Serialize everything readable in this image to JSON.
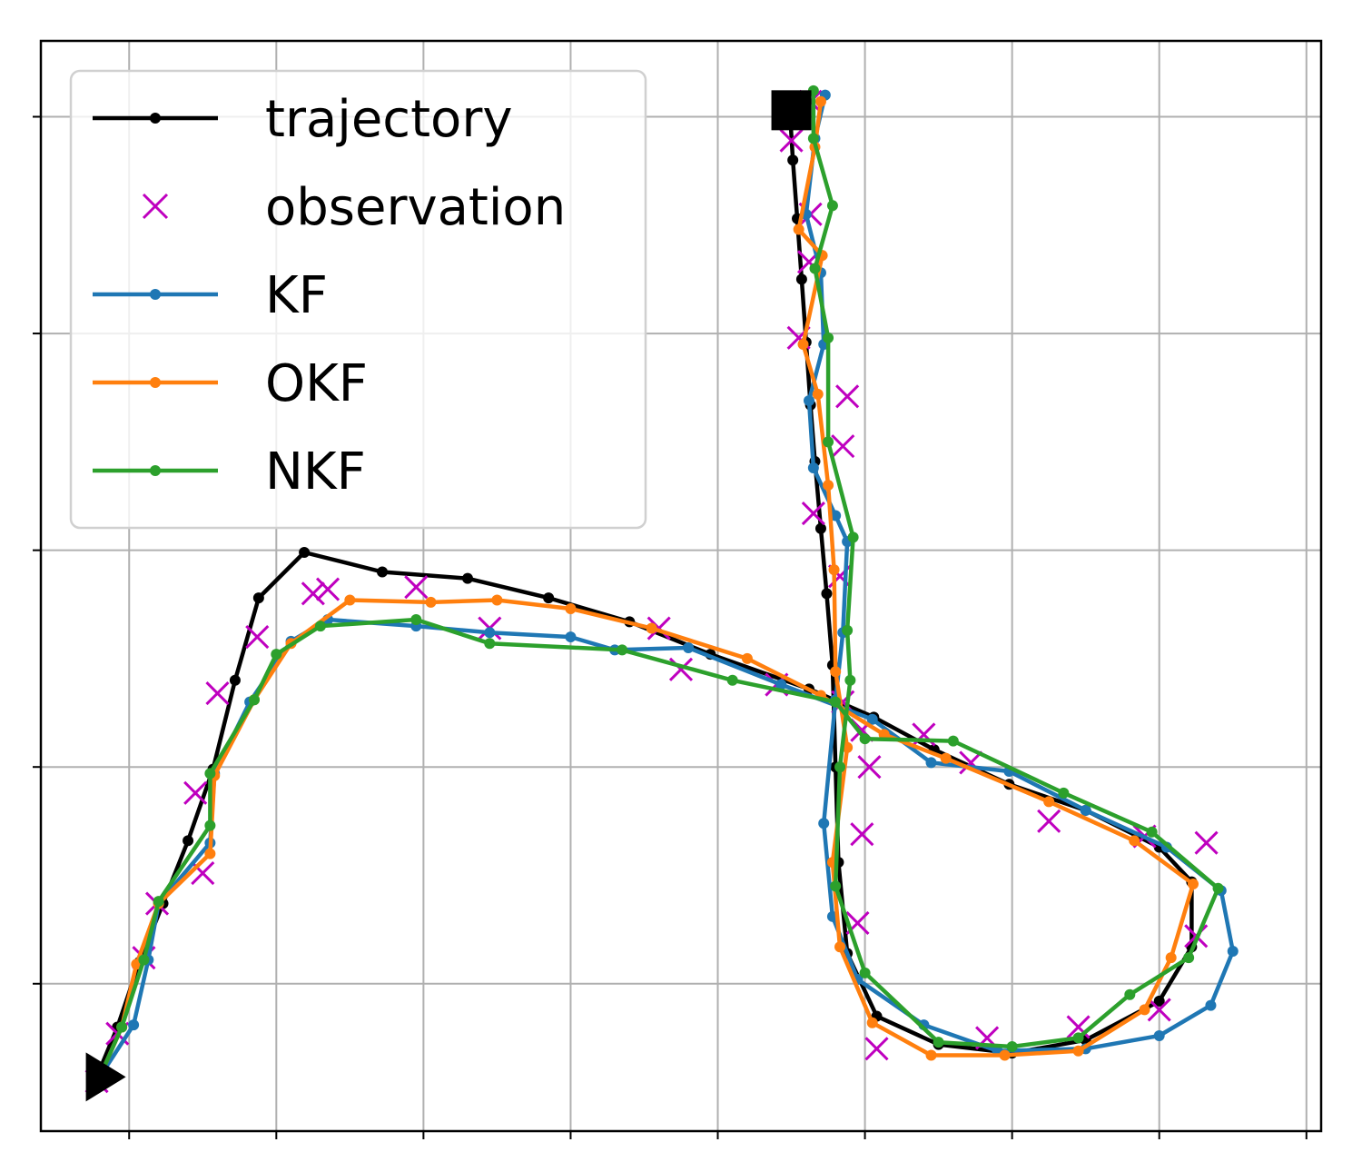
{
  "chart_data": {
    "type": "line",
    "title": "",
    "xlabel": "",
    "ylabel": "",
    "xlim": [
      -0.6,
      8.1
    ],
    "ylim": [
      -0.68,
      4.35
    ],
    "x_grid": [
      0,
      1,
      2,
      3,
      4,
      5,
      6,
      7,
      8
    ],
    "y_grid": [
      0,
      1,
      2,
      3,
      4
    ],
    "grid": true,
    "tick_labels_visible": false,
    "legend_position": "top-left",
    "colors": {
      "trajectory": "#000000",
      "observation": "#bf00bf",
      "KF": "#1f77b4",
      "OKF": "#ff7f0e",
      "NKF": "#2ca02c",
      "grid": "#b0b0b0"
    },
    "markers": {
      "start": {
        "shape": "triangle-right",
        "x": -0.22,
        "y": -0.43
      },
      "end": {
        "shape": "square",
        "x": 4.5,
        "y": 4.03
      }
    },
    "series": [
      {
        "name": "trajectory",
        "style": "line-dot",
        "color": "#000000",
        "points": [
          [
            -0.22,
            -0.43
          ],
          [
            -0.08,
            -0.2
          ],
          [
            0.07,
            0.1
          ],
          [
            0.23,
            0.37
          ],
          [
            0.4,
            0.66
          ],
          [
            0.57,
            0.99
          ],
          [
            0.72,
            1.4
          ],
          [
            0.88,
            1.78
          ],
          [
            1.19,
            1.99
          ],
          [
            1.72,
            1.9
          ],
          [
            2.3,
            1.87
          ],
          [
            2.85,
            1.78
          ],
          [
            3.4,
            1.67
          ],
          [
            3.95,
            1.52
          ],
          [
            4.62,
            1.36
          ],
          [
            5.06,
            1.23
          ],
          [
            5.47,
            1.08
          ],
          [
            5.98,
            0.92
          ],
          [
            6.5,
            0.8
          ],
          [
            7.0,
            0.63
          ],
          [
            7.22,
            0.47
          ],
          [
            7.22,
            0.17
          ],
          [
            7.0,
            -0.08
          ],
          [
            6.5,
            -0.26
          ],
          [
            6.0,
            -0.32
          ],
          [
            5.5,
            -0.28
          ],
          [
            5.08,
            -0.15
          ],
          [
            4.88,
            0.14
          ],
          [
            4.82,
            0.56
          ],
          [
            4.8,
            1.0
          ],
          [
            4.78,
            1.47
          ],
          [
            4.74,
            1.8
          ],
          [
            4.7,
            2.1
          ],
          [
            4.66,
            2.41
          ],
          [
            4.63,
            2.67
          ],
          [
            4.6,
            2.96
          ],
          [
            4.57,
            3.25
          ],
          [
            4.54,
            3.53
          ],
          [
            4.51,
            3.8
          ],
          [
            4.49,
            4.03
          ]
        ]
      },
      {
        "name": "observation",
        "style": "x",
        "color": "#bf00bf",
        "points": [
          [
            -0.22,
            -0.45
          ],
          [
            -0.08,
            -0.23
          ],
          [
            0.1,
            0.12
          ],
          [
            0.19,
            0.37
          ],
          [
            0.5,
            0.51
          ],
          [
            0.45,
            0.88
          ],
          [
            0.6,
            1.34
          ],
          [
            0.87,
            1.6
          ],
          [
            1.25,
            1.8
          ],
          [
            1.35,
            1.82
          ],
          [
            1.95,
            1.83
          ],
          [
            2.45,
            1.64
          ],
          [
            3.6,
            1.64
          ],
          [
            3.75,
            1.45
          ],
          [
            4.4,
            1.38
          ],
          [
            4.98,
            1.17
          ],
          [
            5.4,
            1.15
          ],
          [
            5.03,
            1.0
          ],
          [
            5.72,
            1.02
          ],
          [
            6.25,
            0.75
          ],
          [
            6.9,
            0.68
          ],
          [
            7.32,
            0.65
          ],
          [
            7.25,
            0.22
          ],
          [
            7.0,
            -0.12
          ],
          [
            6.45,
            -0.2
          ],
          [
            5.83,
            -0.25
          ],
          [
            5.08,
            -0.3
          ],
          [
            4.95,
            0.28
          ],
          [
            4.98,
            0.69
          ],
          [
            4.85,
            1.3
          ],
          [
            4.83,
            1.88
          ],
          [
            4.65,
            2.17
          ],
          [
            4.85,
            2.48
          ],
          [
            4.88,
            2.71
          ],
          [
            4.55,
            2.98
          ],
          [
            4.62,
            3.33
          ],
          [
            4.63,
            3.55
          ],
          [
            4.5,
            3.89
          ],
          [
            4.63,
            4.07
          ]
        ]
      },
      {
        "name": "KF",
        "style": "line-dot",
        "color": "#1f77b4",
        "points": [
          [
            -0.2,
            -0.43
          ],
          [
            0.03,
            -0.19
          ],
          [
            0.13,
            0.11
          ],
          [
            0.2,
            0.37
          ],
          [
            0.55,
            0.65
          ],
          [
            0.58,
            0.97
          ],
          [
            0.82,
            1.3
          ],
          [
            1.1,
            1.58
          ],
          [
            1.35,
            1.68
          ],
          [
            1.95,
            1.65
          ],
          [
            2.45,
            1.62
          ],
          [
            3.0,
            1.6
          ],
          [
            3.3,
            1.54
          ],
          [
            3.8,
            1.55
          ],
          [
            4.43,
            1.38
          ],
          [
            5.05,
            1.22
          ],
          [
            5.45,
            1.02
          ],
          [
            5.98,
            0.98
          ],
          [
            6.5,
            0.8
          ],
          [
            7.05,
            0.63
          ],
          [
            7.42,
            0.43
          ],
          [
            7.5,
            0.15
          ],
          [
            7.35,
            -0.1
          ],
          [
            7.0,
            -0.24
          ],
          [
            6.5,
            -0.3
          ],
          [
            5.9,
            -0.31
          ],
          [
            5.4,
            -0.19
          ],
          [
            4.95,
            0.02
          ],
          [
            4.78,
            0.31
          ],
          [
            4.72,
            0.74
          ],
          [
            4.8,
            1.31
          ],
          [
            4.85,
            1.62
          ],
          [
            4.88,
            2.04
          ],
          [
            4.8,
            2.16
          ],
          [
            4.65,
            2.38
          ],
          [
            4.62,
            2.69
          ],
          [
            4.72,
            2.95
          ],
          [
            4.7,
            3.28
          ],
          [
            4.6,
            3.55
          ],
          [
            4.66,
            3.9
          ],
          [
            4.73,
            4.1
          ]
        ]
      },
      {
        "name": "OKF",
        "style": "line-dot",
        "color": "#ff7f0e",
        "points": [
          [
            -0.2,
            -0.43
          ],
          [
            -0.05,
            -0.2
          ],
          [
            0.05,
            0.09
          ],
          [
            0.2,
            0.37
          ],
          [
            0.55,
            0.6
          ],
          [
            0.58,
            0.96
          ],
          [
            0.85,
            1.31
          ],
          [
            1.1,
            1.57
          ],
          [
            1.5,
            1.77
          ],
          [
            2.05,
            1.76
          ],
          [
            2.5,
            1.77
          ],
          [
            3.0,
            1.73
          ],
          [
            3.55,
            1.64
          ],
          [
            4.2,
            1.5
          ],
          [
            4.7,
            1.33
          ],
          [
            5.13,
            1.15
          ],
          [
            5.55,
            1.04
          ],
          [
            6.25,
            0.84
          ],
          [
            6.83,
            0.66
          ],
          [
            7.23,
            0.46
          ],
          [
            7.08,
            0.12
          ],
          [
            6.9,
            -0.12
          ],
          [
            6.45,
            -0.31
          ],
          [
            5.95,
            -0.33
          ],
          [
            5.45,
            -0.33
          ],
          [
            5.05,
            -0.18
          ],
          [
            4.83,
            0.17
          ],
          [
            4.78,
            0.56
          ],
          [
            4.88,
            1.09
          ],
          [
            4.8,
            1.44
          ],
          [
            4.79,
            1.91
          ],
          [
            4.75,
            2.3
          ],
          [
            4.68,
            2.72
          ],
          [
            4.58,
            2.95
          ],
          [
            4.71,
            3.36
          ],
          [
            4.55,
            3.48
          ],
          [
            4.66,
            3.86
          ],
          [
            4.7,
            4.07
          ]
        ]
      },
      {
        "name": "NKF",
        "style": "line-dot",
        "color": "#2ca02c",
        "points": [
          [
            -0.2,
            -0.43
          ],
          [
            -0.05,
            -0.2
          ],
          [
            0.1,
            0.11
          ],
          [
            0.2,
            0.38
          ],
          [
            0.55,
            0.73
          ],
          [
            0.55,
            0.97
          ],
          [
            0.85,
            1.31
          ],
          [
            1.0,
            1.52
          ],
          [
            1.3,
            1.65
          ],
          [
            1.95,
            1.68
          ],
          [
            2.45,
            1.57
          ],
          [
            3.35,
            1.54
          ],
          [
            4.1,
            1.4
          ],
          [
            4.8,
            1.3
          ],
          [
            5.0,
            1.13
          ],
          [
            5.6,
            1.12
          ],
          [
            6.35,
            0.88
          ],
          [
            6.95,
            0.7
          ],
          [
            7.4,
            0.44
          ],
          [
            7.2,
            0.12
          ],
          [
            6.8,
            -0.05
          ],
          [
            6.45,
            -0.25
          ],
          [
            6.0,
            -0.29
          ],
          [
            5.5,
            -0.27
          ],
          [
            5.0,
            0.05
          ],
          [
            4.8,
            0.45
          ],
          [
            4.83,
            1.0
          ],
          [
            4.9,
            1.4
          ],
          [
            4.88,
            1.63
          ],
          [
            4.92,
            2.06
          ],
          [
            4.75,
            2.5
          ],
          [
            4.75,
            2.98
          ],
          [
            4.66,
            3.3
          ],
          [
            4.78,
            3.59
          ],
          [
            4.65,
            3.9
          ],
          [
            4.65,
            4.12
          ]
        ]
      }
    ],
    "legend": [
      "trajectory",
      "observation",
      "KF",
      "OKF",
      "NKF"
    ]
  }
}
